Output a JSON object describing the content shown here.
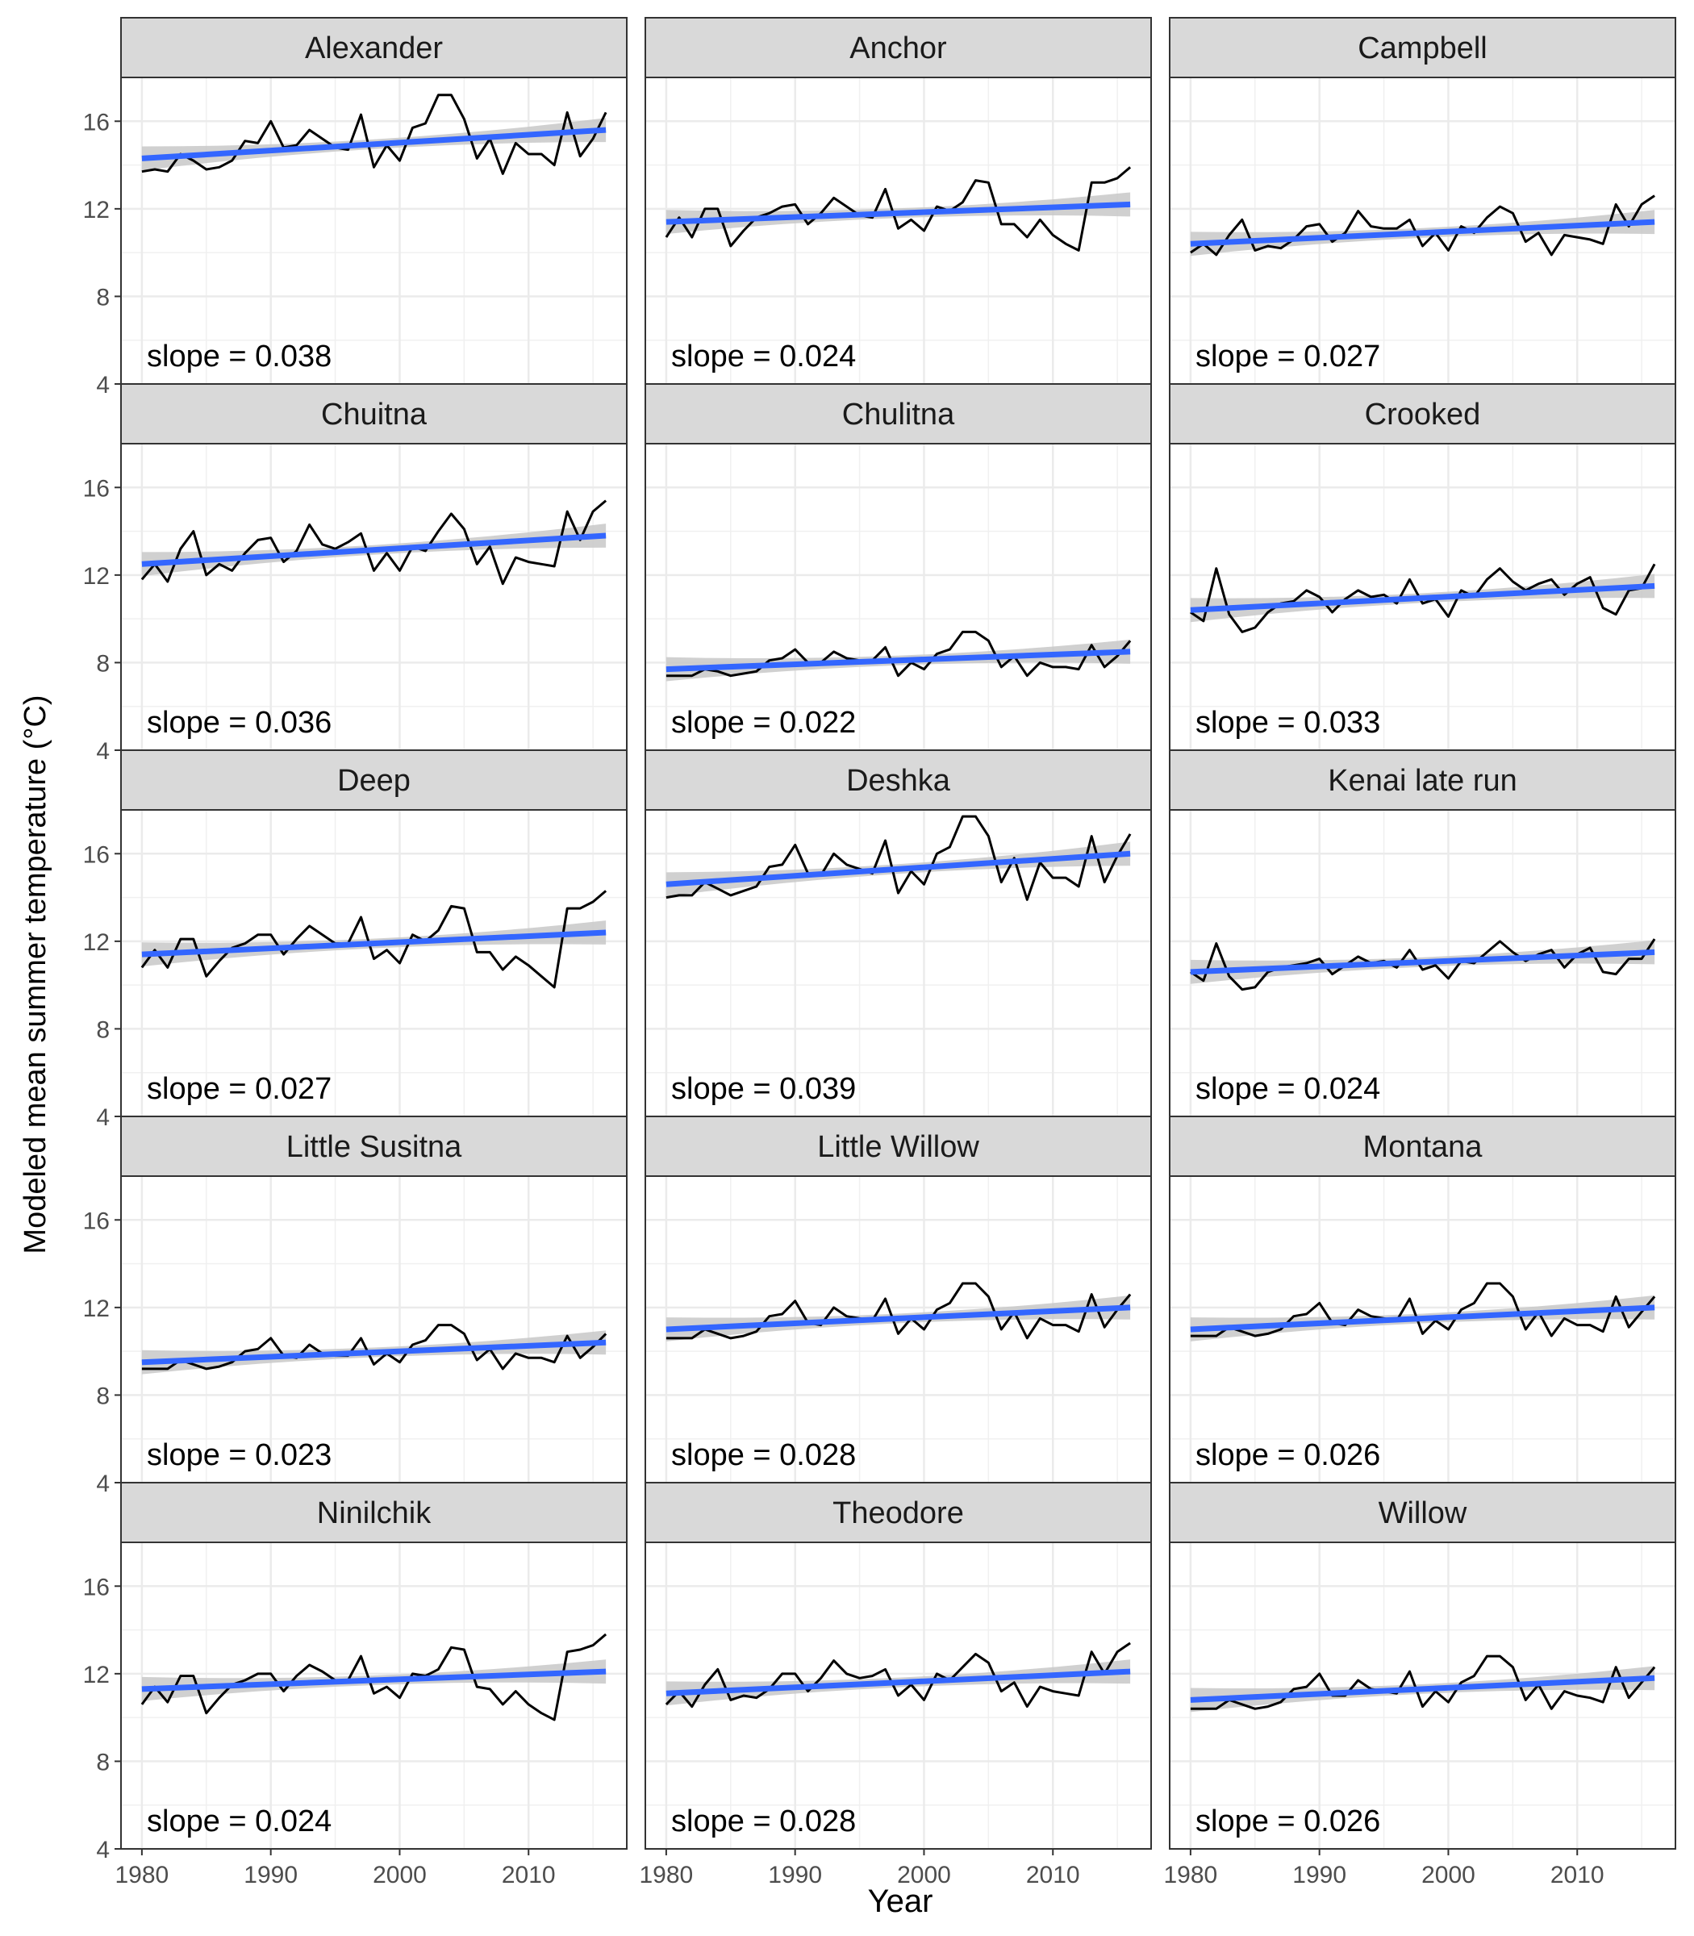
{
  "chart_data": {
    "type": "line",
    "xlabel": "Year",
    "ylabel": "Modeled mean summer temperature (°C)",
    "xlim": [
      1980,
      2016
    ],
    "ylim": [
      4,
      18
    ],
    "x_ticks": [
      1980,
      1990,
      2000,
      2010
    ],
    "y_ticks": [
      4,
      8,
      12,
      16
    ],
    "grid": true,
    "layout": "facets 5 rows x 3 columns",
    "x": [
      1980,
      1981,
      1982,
      1983,
      1984,
      1985,
      1986,
      1987,
      1988,
      1989,
      1990,
      1991,
      1992,
      1993,
      1994,
      1995,
      1996,
      1997,
      1998,
      1999,
      2000,
      2001,
      2002,
      2003,
      2004,
      2005,
      2006,
      2007,
      2008,
      2009,
      2010,
      2011,
      2012,
      2013,
      2014,
      2015,
      2016
    ],
    "colors": {
      "observed": "#000000",
      "trend": "#3366FF",
      "band": "#C8C8C8",
      "strip": "#D9D9D9"
    },
    "panels": [
      {
        "title": "Alexander",
        "slope_label": "slope = 0.038",
        "trend": [
          14.3,
          15.6
        ],
        "values": [
          13.7,
          13.8,
          13.7,
          14.5,
          14.2,
          13.8,
          13.9,
          14.2,
          15.1,
          15.0,
          16.0,
          14.8,
          14.9,
          15.6,
          15.2,
          14.8,
          14.7,
          16.3,
          13.9,
          14.9,
          14.2,
          15.7,
          15.9,
          17.2,
          17.2,
          16.1,
          14.3,
          15.2,
          13.6,
          15.0,
          14.5,
          14.5,
          14.0,
          16.4,
          14.4,
          15.2,
          16.4
        ]
      },
      {
        "title": "Anchor",
        "slope_label": "slope = 0.024",
        "trend": [
          11.4,
          12.2
        ],
        "values": [
          10.7,
          11.6,
          10.7,
          12.0,
          12.0,
          10.3,
          11.0,
          11.6,
          11.8,
          12.1,
          12.2,
          11.3,
          11.8,
          12.5,
          12.1,
          11.7,
          11.6,
          12.9,
          11.1,
          11.5,
          11.0,
          12.1,
          11.9,
          12.3,
          13.3,
          13.2,
          11.3,
          11.3,
          10.7,
          11.5,
          10.8,
          10.4,
          10.1,
          13.2,
          13.2,
          13.4,
          13.9
        ]
      },
      {
        "title": "Campbell",
        "slope_label": "slope = 0.027",
        "trend": [
          10.4,
          11.4
        ],
        "values": [
          10.0,
          10.4,
          9.9,
          10.8,
          11.5,
          10.1,
          10.3,
          10.2,
          10.6,
          11.2,
          11.3,
          10.5,
          10.9,
          11.9,
          11.2,
          11.1,
          11.1,
          11.5,
          10.3,
          10.9,
          10.1,
          11.2,
          10.9,
          11.6,
          12.1,
          11.8,
          10.5,
          10.9,
          9.9,
          10.8,
          10.7,
          10.6,
          10.4,
          12.2,
          11.2,
          12.2,
          12.6
        ]
      },
      {
        "title": "Chuitna",
        "slope_label": "slope = 0.036",
        "trend": [
          12.5,
          13.8
        ],
        "values": [
          11.8,
          12.5,
          11.7,
          13.2,
          14.0,
          12.0,
          12.5,
          12.2,
          13.0,
          13.6,
          13.7,
          12.6,
          13.1,
          14.3,
          13.4,
          13.2,
          13.5,
          13.9,
          12.2,
          13.0,
          12.2,
          13.3,
          13.1,
          14.0,
          14.8,
          14.1,
          12.5,
          13.3,
          11.6,
          12.8,
          12.6,
          12.5,
          12.4,
          14.9,
          13.6,
          14.9,
          15.4
        ]
      },
      {
        "title": "Chulitna",
        "slope_label": "slope = 0.022",
        "trend": [
          7.7,
          8.5
        ],
        "values": [
          7.4,
          7.4,
          7.4,
          7.7,
          7.6,
          7.4,
          7.5,
          7.6,
          8.1,
          8.2,
          8.6,
          8.0,
          8.0,
          8.5,
          8.2,
          8.1,
          8.1,
          8.7,
          7.4,
          8.0,
          7.7,
          8.4,
          8.6,
          9.4,
          9.4,
          9.0,
          7.8,
          8.3,
          7.4,
          8.0,
          7.8,
          7.8,
          7.7,
          8.8,
          7.8,
          8.3,
          9.0
        ]
      },
      {
        "title": "Crooked",
        "slope_label": "slope = 0.033",
        "trend": [
          10.4,
          11.5
        ],
        "values": [
          10.3,
          9.9,
          12.3,
          10.2,
          9.4,
          9.6,
          10.3,
          10.7,
          10.8,
          11.3,
          11.0,
          10.3,
          10.9,
          11.3,
          11.0,
          11.1,
          10.7,
          11.8,
          10.7,
          10.9,
          10.1,
          11.3,
          11.0,
          11.8,
          12.3,
          11.7,
          11.3,
          11.6,
          11.8,
          11.1,
          11.6,
          11.9,
          10.5,
          10.2,
          11.3,
          11.4,
          12.5
        ]
      },
      {
        "title": "Deep",
        "slope_label": "slope = 0.027",
        "trend": [
          11.4,
          12.4
        ],
        "values": [
          10.8,
          11.6,
          10.8,
          12.1,
          12.1,
          10.4,
          11.1,
          11.7,
          11.9,
          12.3,
          12.3,
          11.4,
          12.1,
          12.7,
          12.3,
          11.9,
          11.9,
          13.1,
          11.2,
          11.6,
          11.0,
          12.3,
          12.0,
          12.5,
          13.6,
          13.5,
          11.5,
          11.5,
          10.7,
          11.3,
          10.9,
          10.4,
          9.9,
          13.5,
          13.5,
          13.8,
          14.3
        ]
      },
      {
        "title": "Deshka",
        "slope_label": "slope = 0.039",
        "trend": [
          14.6,
          16.0
        ],
        "values": [
          14.0,
          14.1,
          14.1,
          14.7,
          14.4,
          14.1,
          14.3,
          14.5,
          15.4,
          15.5,
          16.4,
          15.1,
          15.0,
          16.0,
          15.5,
          15.3,
          15.1,
          16.6,
          14.2,
          15.2,
          14.6,
          16.0,
          16.3,
          17.7,
          17.7,
          16.8,
          14.7,
          15.8,
          13.9,
          15.6,
          14.9,
          14.9,
          14.5,
          16.8,
          14.7,
          15.9,
          16.9
        ]
      },
      {
        "title": "Kenai late run",
        "slope_label": "slope = 0.024",
        "trend": [
          10.6,
          11.5
        ],
        "values": [
          10.6,
          10.2,
          11.9,
          10.4,
          9.8,
          9.9,
          10.6,
          10.8,
          10.9,
          11.0,
          11.2,
          10.5,
          10.9,
          11.3,
          11.0,
          11.1,
          10.8,
          11.6,
          10.7,
          10.9,
          10.3,
          11.1,
          11.0,
          11.5,
          12.0,
          11.5,
          11.1,
          11.4,
          11.6,
          10.8,
          11.4,
          11.7,
          10.6,
          10.5,
          11.2,
          11.2,
          12.1
        ]
      },
      {
        "title": "Little Susitna",
        "slope_label": "slope = 0.023",
        "trend": [
          9.5,
          10.4
        ],
        "values": [
          9.2,
          9.2,
          9.2,
          9.6,
          9.4,
          9.2,
          9.3,
          9.5,
          10.0,
          10.1,
          10.6,
          9.8,
          9.7,
          10.3,
          9.9,
          9.8,
          9.8,
          10.6,
          9.4,
          9.9,
          9.5,
          10.3,
          10.5,
          11.2,
          11.2,
          10.8,
          9.6,
          10.1,
          9.2,
          9.9,
          9.7,
          9.7,
          9.5,
          10.7,
          9.7,
          10.2,
          10.8
        ]
      },
      {
        "title": "Little Willow",
        "slope_label": "slope = 0.028",
        "trend": [
          11.0,
          12.0
        ],
        "values": [
          10.6,
          10.6,
          10.6,
          11.0,
          10.8,
          10.6,
          10.7,
          10.9,
          11.6,
          11.7,
          12.3,
          11.3,
          11.2,
          12.0,
          11.6,
          11.5,
          11.4,
          12.4,
          10.8,
          11.5,
          11.0,
          11.9,
          12.2,
          13.1,
          13.1,
          12.5,
          11.0,
          11.8,
          10.6,
          11.5,
          11.2,
          11.2,
          10.9,
          12.6,
          11.1,
          11.9,
          12.6
        ]
      },
      {
        "title": "Montana",
        "slope_label": "slope = 0.026",
        "trend": [
          11.0,
          12.0
        ],
        "values": [
          10.7,
          10.7,
          10.7,
          11.1,
          10.9,
          10.7,
          10.8,
          11.0,
          11.6,
          11.7,
          12.2,
          11.3,
          11.2,
          11.9,
          11.6,
          11.5,
          11.4,
          12.4,
          10.8,
          11.4,
          11.0,
          11.9,
          12.2,
          13.1,
          13.1,
          12.5,
          11.0,
          11.8,
          10.7,
          11.5,
          11.2,
          11.2,
          10.9,
          12.5,
          11.1,
          11.8,
          12.5
        ]
      },
      {
        "title": "Ninilchik",
        "slope_label": "slope = 0.024",
        "trend": [
          11.3,
          12.1
        ],
        "values": [
          10.6,
          11.4,
          10.7,
          11.9,
          11.9,
          10.2,
          10.9,
          11.5,
          11.7,
          12.0,
          12.0,
          11.2,
          11.9,
          12.4,
          12.1,
          11.7,
          11.7,
          12.8,
          11.1,
          11.4,
          10.9,
          12.0,
          11.9,
          12.2,
          13.2,
          13.1,
          11.4,
          11.3,
          10.6,
          11.2,
          10.6,
          10.2,
          9.9,
          13.0,
          13.1,
          13.3,
          13.8
        ]
      },
      {
        "title": "Theodore",
        "slope_label": "slope = 0.028",
        "trend": [
          11.1,
          12.1
        ],
        "values": [
          10.6,
          11.2,
          10.5,
          11.5,
          12.2,
          10.8,
          11.0,
          10.9,
          11.3,
          12.0,
          12.0,
          11.2,
          11.8,
          12.6,
          12.0,
          11.8,
          11.9,
          12.2,
          11.0,
          11.5,
          10.8,
          12.0,
          11.7,
          12.3,
          12.9,
          12.5,
          11.2,
          11.6,
          10.5,
          11.4,
          11.2,
          11.1,
          11.0,
          13.0,
          12.0,
          13.0,
          13.4
        ]
      },
      {
        "title": "Willow",
        "slope_label": "slope = 0.026",
        "trend": [
          10.8,
          11.8
        ],
        "values": [
          10.4,
          10.4,
          10.4,
          10.8,
          10.6,
          10.4,
          10.5,
          10.7,
          11.3,
          11.4,
          12.0,
          11.0,
          11.0,
          11.7,
          11.3,
          11.2,
          11.1,
          12.1,
          10.5,
          11.2,
          10.7,
          11.6,
          11.9,
          12.8,
          12.8,
          12.3,
          10.8,
          11.5,
          10.4,
          11.2,
          11.0,
          10.9,
          10.7,
          12.3,
          10.9,
          11.6,
          12.3
        ]
      }
    ]
  }
}
